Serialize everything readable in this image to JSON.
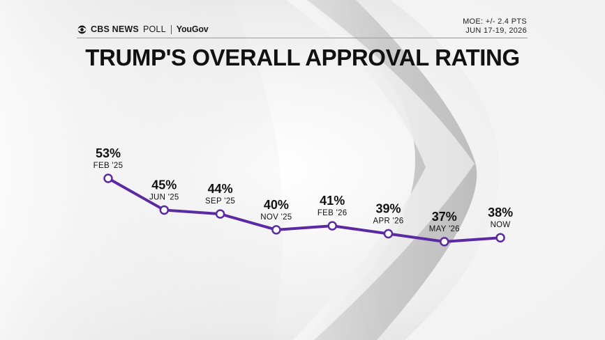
{
  "header": {
    "brand_cbs": "CBS NEWS",
    "brand_poll": "POLL",
    "brand_partner": "YouGov",
    "moe": "MOE: +/- 2.4 PTS",
    "date": "JUN 17-19, 2026"
  },
  "colors": {
    "line": "#5b2aa3",
    "point_fill": "#ffffff"
  },
  "icons": {
    "brand_logo": "cbs-eye-icon"
  },
  "chart_data": {
    "type": "line",
    "title": "TRUMP'S OVERALL APPROVAL RATING",
    "categories": [
      "FEB '25",
      "JUN '25",
      "SEP '25",
      "NOV '25",
      "FEB '26",
      "APR '26",
      "MAY '26",
      "NOW"
    ],
    "value_labels": [
      "53%",
      "45%",
      "44%",
      "40%",
      "41%",
      "39%",
      "37%",
      "38%"
    ],
    "series": [
      {
        "values": [
          53,
          45,
          44,
          40,
          41,
          39,
          37,
          38
        ]
      }
    ],
    "unit": "%",
    "grid": false,
    "legend": "none"
  }
}
